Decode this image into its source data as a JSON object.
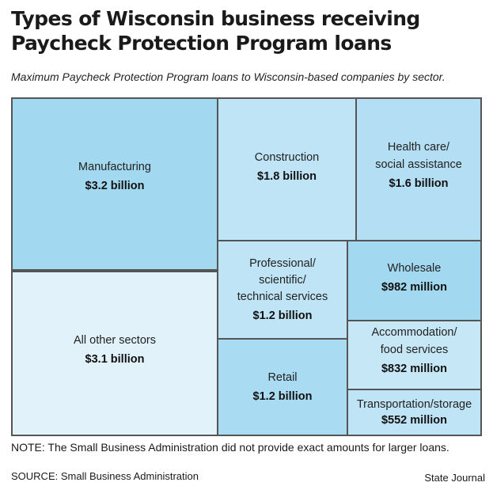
{
  "header": {
    "title_line1": "Types of Wisconsin business receiving",
    "title_line2": "Paycheck Protection Program loans",
    "subtitle": "Maximum Paycheck Protection Program loans to Wisconsin-based companies by sector."
  },
  "chart_data": {
    "type": "treemap",
    "title": "Types of Wisconsin business receiving Paycheck Protection Program loans",
    "subtitle": "Maximum Paycheck Protection Program loans to Wisconsin-based companies by sector.",
    "unit": "USD",
    "items": [
      {
        "id": "manufacturing",
        "label": "Manufacturing",
        "value_text": "$3.2 billion",
        "value": 3200000000,
        "color": "#a3d9f0"
      },
      {
        "id": "all-other",
        "label": "All other sectors",
        "value_text": "$3.1 billion",
        "value": 3100000000,
        "color": "#e1f2fa"
      },
      {
        "id": "construction",
        "label": "Construction",
        "value_text": "$1.8 billion",
        "value": 1800000000,
        "color": "#bfe4f5"
      },
      {
        "id": "health-care",
        "label": "Health care/\nsocial assistance",
        "value_text": "$1.6 billion",
        "value": 1600000000,
        "color": "#b3def3"
      },
      {
        "id": "professional",
        "label": "Professional/\nscientific/\ntechnical services",
        "value_text": "$1.2 billion",
        "value": 1200000000,
        "color": "#bfe4f5"
      },
      {
        "id": "retail",
        "label": "Retail",
        "value_text": "$1.2 billion",
        "value": 1200000000,
        "color": "#a9dbf2"
      },
      {
        "id": "wholesale",
        "label": "Wholesale",
        "value_text": "$982 million",
        "value": 982000000,
        "color": "#a3d9f0"
      },
      {
        "id": "accommodation",
        "label": "Accommodation/\nfood services",
        "value_text": "$832 million",
        "value": 832000000,
        "color": "#c6e7f6"
      },
      {
        "id": "transportation",
        "label": "Transportation/storage",
        "value_text": "$552 million",
        "value": 552000000,
        "color": "#bfe4f5"
      }
    ]
  },
  "footer": {
    "note": "NOTE: The Small Business Administration did not provide exact amounts for larger loans.",
    "source": "SOURCE: Small Business Administration",
    "credit": "State Journal"
  }
}
